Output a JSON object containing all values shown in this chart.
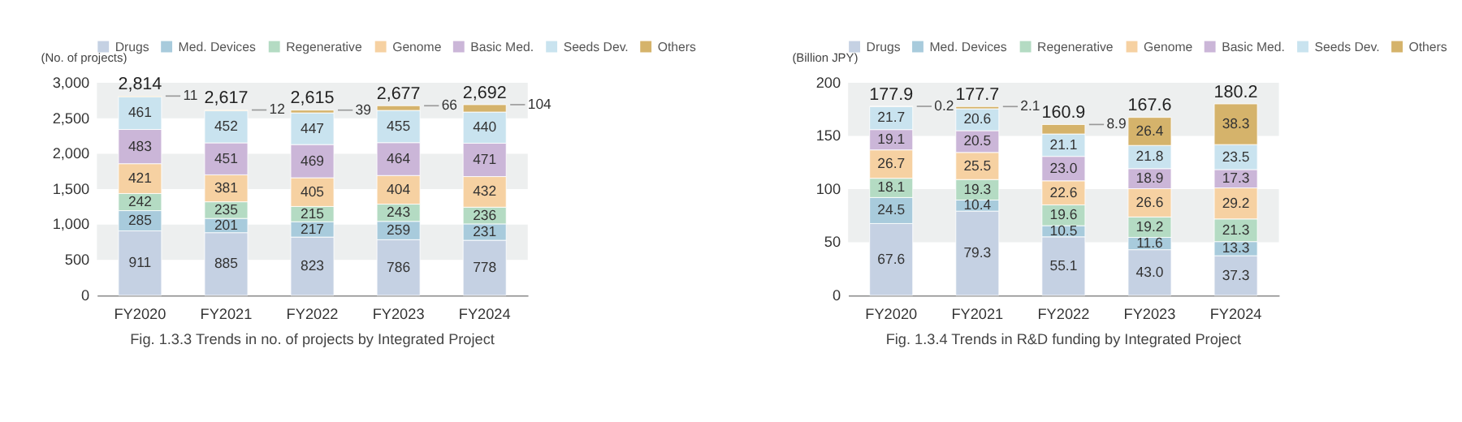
{
  "chart_data": [
    {
      "type": "bar",
      "stacked": true,
      "title": "Fig. 1.3.3  Trends in no. of projects by Integrated Project",
      "ylabel": "(No. of projects)",
      "legend": "top",
      "data_labels": true,
      "categories": [
        "FY2020",
        "FY2021",
        "FY2022",
        "FY2023",
        "FY2024"
      ],
      "ylim": [
        0,
        3000
      ],
      "yticks": [
        0,
        500,
        {
          "value": 1000,
          "label": "1,000"
        },
        {
          "value": 1500,
          "label": "1,500"
        },
        {
          "value": 2000,
          "label": "2,000"
        },
        {
          "value": 2500,
          "label": "2,500"
        },
        {
          "value": 3000,
          "label": "3,000"
        }
      ],
      "bands": [
        {
          "axis": "y",
          "from": 500,
          "to": 1000,
          "color": "#edefef"
        },
        {
          "axis": "y",
          "from": 1500,
          "to": 2000,
          "color": "#edefef"
        },
        {
          "axis": "y",
          "from": 2500,
          "to": 3000,
          "color": "#edefef"
        }
      ],
      "series": [
        {
          "name": "Drugs",
          "color": "#c5d1e3",
          "values": [
            911,
            885,
            823,
            786,
            778
          ]
        },
        {
          "name": "Med. Devices",
          "color": "#a8cbdc",
          "values": [
            285,
            201,
            217,
            259,
            231
          ]
        },
        {
          "name": "Regenerative",
          "color": "#b4dbc3",
          "values": [
            242,
            235,
            215,
            243,
            236
          ]
        },
        {
          "name": "Genome",
          "color": "#f6d1a2",
          "values": [
            421,
            381,
            405,
            404,
            432
          ]
        },
        {
          "name": "Basic Med.",
          "color": "#cbb6d8",
          "values": [
            483,
            451,
            469,
            464,
            471
          ]
        },
        {
          "name": "Seeds Dev.",
          "color": "#c9e3ef",
          "values": [
            461,
            452,
            447,
            455,
            440
          ]
        },
        {
          "name": "Others",
          "color": "#d5b36b",
          "values": [
            11,
            12,
            39,
            66,
            104
          ]
        }
      ],
      "totals": [
        "2,814",
        "2,617",
        "2,615",
        "2,677",
        "2,692"
      ]
    },
    {
      "type": "bar",
      "stacked": true,
      "title": "Fig. 1.3.4  Trends in R&D funding by Integrated Project",
      "ylabel": "(Billion JPY)",
      "legend": "top",
      "data_labels": true,
      "categories": [
        "FY2020",
        "FY2021",
        "FY2022",
        "FY2023",
        "FY2024"
      ],
      "ylim": [
        0,
        200
      ],
      "yticks": [
        0,
        50,
        100,
        150,
        200
      ],
      "bands": [
        {
          "axis": "y",
          "from": 50,
          "to": 100,
          "color": "#edefef"
        },
        {
          "axis": "y",
          "from": 150,
          "to": 200,
          "color": "#edefef"
        }
      ],
      "series": [
        {
          "name": "Drugs",
          "color": "#c5d1e3",
          "values": [
            67.6,
            79.3,
            55.1,
            43.0,
            37.3
          ],
          "value_labels": [
            "67.6",
            "79.3",
            "55.1",
            "43.0",
            "37.3"
          ]
        },
        {
          "name": "Med. Devices",
          "color": "#a8cbdc",
          "values": [
            24.5,
            10.4,
            10.5,
            11.6,
            13.3
          ]
        },
        {
          "name": "Regenerative",
          "color": "#b4dbc3",
          "values": [
            18.1,
            19.3,
            19.6,
            19.2,
            21.3
          ]
        },
        {
          "name": "Genome",
          "color": "#f6d1a2",
          "values": [
            26.7,
            25.5,
            22.6,
            26.6,
            29.2
          ]
        },
        {
          "name": "Basic Med.",
          "color": "#cbb6d8",
          "values": [
            19.1,
            20.5,
            23.0,
            18.9,
            17.3
          ],
          "value_labels": [
            "19.1",
            "20.5",
            "23.0",
            "18.9",
            "17.3"
          ]
        },
        {
          "name": "Seeds Dev.",
          "color": "#c9e3ef",
          "values": [
            21.7,
            20.6,
            21.1,
            21.8,
            23.5
          ]
        },
        {
          "name": "Others",
          "color": "#d5b36b",
          "values": [
            0.2,
            2.1,
            8.9,
            26.4,
            38.3
          ]
        }
      ],
      "totals": [
        "177.9",
        "177.7",
        "160.9",
        "167.6",
        "180.2"
      ]
    }
  ]
}
